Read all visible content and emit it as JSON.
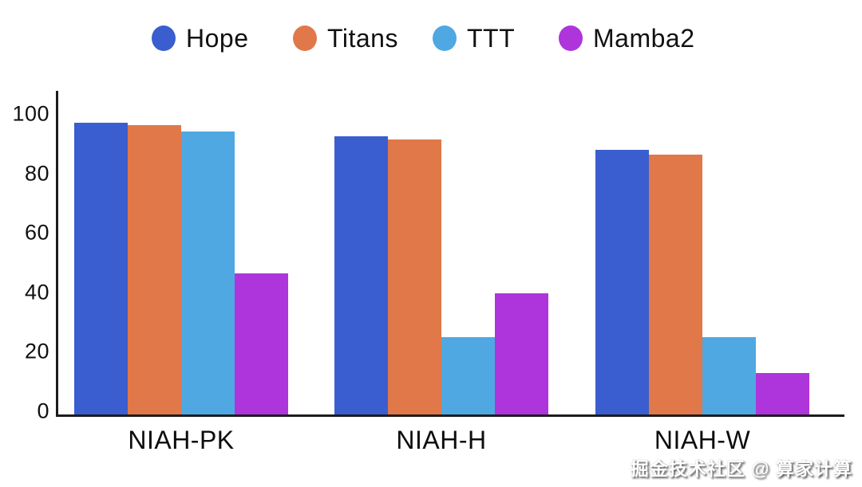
{
  "watermark": "掘金技术社区 @ 算家计算",
  "colors": {
    "hope": "#3A5ECF",
    "titans": "#E0784A",
    "ttt": "#4FA8E2",
    "mamba2": "#AE35DB",
    "axis": "#1C1C1C",
    "label": "#111111",
    "background": "#FFFFFF"
  },
  "chart_data": {
    "type": "bar",
    "title": "",
    "xlabel": "",
    "ylabel": "",
    "categories": [
      "NIAH-PK",
      "NIAH-H",
      "NIAH-W"
    ],
    "series": [
      {
        "name": "Hope",
        "color": "#3A5ECF",
        "values": [
          97,
          92.5,
          88
        ]
      },
      {
        "name": "Titans",
        "color": "#E0784A",
        "values": [
          96.3,
          91.5,
          86.5
        ]
      },
      {
        "name": "TTT",
        "color": "#4FA8E2",
        "values": [
          94.2,
          26,
          26
        ]
      },
      {
        "name": "Mamba2",
        "color": "#AE35DB",
        "values": [
          47,
          40.5,
          14
        ]
      }
    ],
    "ylim": [
      0,
      100
    ],
    "yticks": [
      0,
      20,
      40,
      60,
      80,
      100
    ],
    "grid": false,
    "legend_position": "top"
  }
}
